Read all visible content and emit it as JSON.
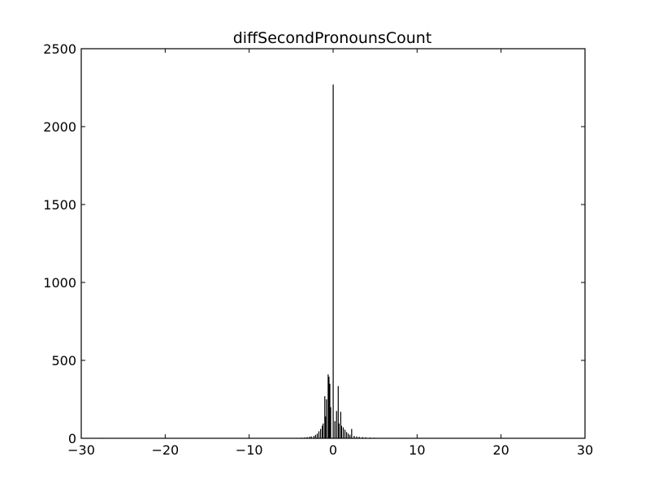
{
  "chart_data": {
    "type": "bar",
    "title": "diffSecondPronounsCount",
    "xlabel": "",
    "ylabel": "",
    "xlim": [
      -30,
      30
    ],
    "ylim": [
      0,
      2500
    ],
    "x_ticks": [
      -30,
      -20,
      -10,
      0,
      10,
      20,
      30
    ],
    "x_tick_labels": [
      "−30",
      "−20",
      "−10",
      "0",
      "10",
      "20",
      "30"
    ],
    "y_ticks": [
      0,
      500,
      1000,
      1500,
      2000,
      2500
    ],
    "y_tick_labels": [
      "0",
      "500",
      "1000",
      "1500",
      "2000",
      "2500"
    ],
    "grid": false,
    "legend": "none",
    "bar_color": "#000000",
    "bin_width": 0.1,
    "bins": [
      {
        "x": -27.5,
        "y": 1
      },
      {
        "x": -4.8,
        "y": 2
      },
      {
        "x": -4.3,
        "y": 3
      },
      {
        "x": -3.8,
        "y": 4
      },
      {
        "x": -3.4,
        "y": 6
      },
      {
        "x": -3.1,
        "y": 8
      },
      {
        "x": -2.8,
        "y": 10
      },
      {
        "x": -2.6,
        "y": 12
      },
      {
        "x": -2.3,
        "y": 15
      },
      {
        "x": -2.1,
        "y": 22
      },
      {
        "x": -1.9,
        "y": 30
      },
      {
        "x": -1.7,
        "y": 45
      },
      {
        "x": -1.5,
        "y": 60
      },
      {
        "x": -1.3,
        "y": 80
      },
      {
        "x": -1.2,
        "y": 95
      },
      {
        "x": -1.0,
        "y": 270
      },
      {
        "x": -0.9,
        "y": 140
      },
      {
        "x": -0.8,
        "y": 250
      },
      {
        "x": -0.6,
        "y": 410
      },
      {
        "x": -0.5,
        "y": 395
      },
      {
        "x": -0.4,
        "y": 350
      },
      {
        "x": -0.3,
        "y": 200
      },
      {
        "x": 0.0,
        "y": 2270
      },
      {
        "x": 0.2,
        "y": 110
      },
      {
        "x": 0.4,
        "y": 175
      },
      {
        "x": 0.6,
        "y": 335
      },
      {
        "x": 0.7,
        "y": 95
      },
      {
        "x": 0.9,
        "y": 170
      },
      {
        "x": 1.0,
        "y": 80
      },
      {
        "x": 1.2,
        "y": 70
      },
      {
        "x": 1.4,
        "y": 55
      },
      {
        "x": 1.6,
        "y": 40
      },
      {
        "x": 1.8,
        "y": 30
      },
      {
        "x": 2.0,
        "y": 22
      },
      {
        "x": 2.2,
        "y": 60
      },
      {
        "x": 2.5,
        "y": 15
      },
      {
        "x": 2.8,
        "y": 12
      },
      {
        "x": 3.1,
        "y": 10
      },
      {
        "x": 3.5,
        "y": 8
      },
      {
        "x": 3.9,
        "y": 6
      },
      {
        "x": 4.4,
        "y": 5
      },
      {
        "x": 4.9,
        "y": 4
      },
      {
        "x": 7.5,
        "y": 2
      },
      {
        "x": 8.3,
        "y": 1
      }
    ]
  }
}
